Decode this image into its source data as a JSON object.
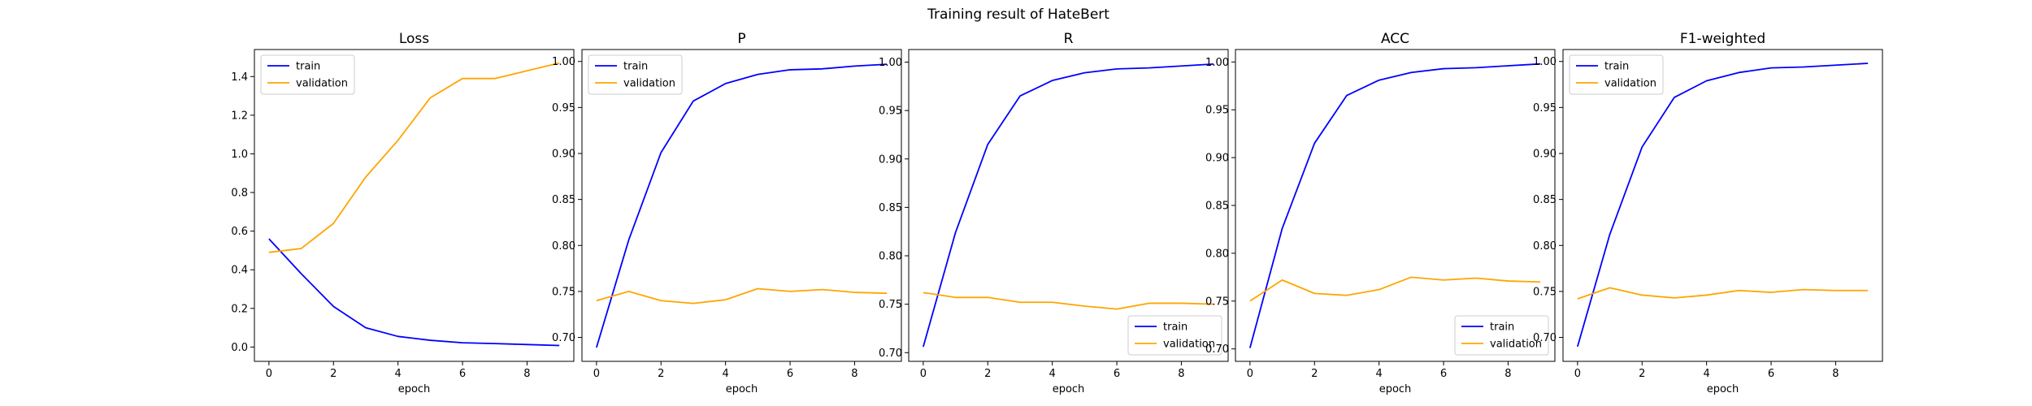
{
  "figure": {
    "title": "Training result of HateBert"
  },
  "chart_data": [
    {
      "type": "line",
      "title": "Loss",
      "xlabel": "epoch",
      "ylabel": "",
      "x": [
        0,
        1,
        2,
        3,
        4,
        5,
        6,
        7,
        8,
        9
      ],
      "xlim": [
        -0.45,
        9.45
      ],
      "ylim": [
        -0.074,
        1.54
      ],
      "xticks": [
        0,
        2,
        4,
        6,
        8
      ],
      "yticks": [
        0.0,
        0.2,
        0.4,
        0.6,
        0.8,
        1.0,
        1.2,
        1.4
      ],
      "ytick_labels": [
        "0.0",
        "0.2",
        "0.4",
        "0.6",
        "0.8",
        "1.0",
        "1.2",
        "1.4"
      ],
      "legend_position": "upper-left",
      "grid": false,
      "series": [
        {
          "name": "train",
          "color": "#0000ff",
          "values": [
            0.56,
            0.38,
            0.21,
            0.1,
            0.055,
            0.035,
            0.022,
            0.018,
            0.013,
            0.008
          ]
        },
        {
          "name": "validation",
          "color": "#ffa500",
          "values": [
            0.49,
            0.51,
            0.64,
            0.88,
            1.07,
            1.29,
            1.39,
            1.39,
            1.43,
            1.47
          ]
        }
      ]
    },
    {
      "type": "line",
      "title": "P",
      "xlabel": "epoch",
      "ylabel": "",
      "x": [
        0,
        1,
        2,
        3,
        4,
        5,
        6,
        7,
        8,
        9
      ],
      "xlim": [
        -0.45,
        9.45
      ],
      "ylim": [
        0.674,
        1.013
      ],
      "xticks": [
        0,
        2,
        4,
        6,
        8
      ],
      "yticks": [
        0.7,
        0.75,
        0.8,
        0.85,
        0.9,
        0.95,
        1.0
      ],
      "ytick_labels": [
        "0.70",
        "0.75",
        "0.80",
        "0.85",
        "0.90",
        "0.95",
        "1.00"
      ],
      "legend_position": "upper-left",
      "grid": false,
      "series": [
        {
          "name": "train",
          "color": "#0000ff",
          "values": [
            0.689,
            0.806,
            0.901,
            0.957,
            0.976,
            0.986,
            0.991,
            0.992,
            0.995,
            0.997
          ]
        },
        {
          "name": "validation",
          "color": "#ffa500",
          "values": [
            0.74,
            0.75,
            0.74,
            0.737,
            0.741,
            0.753,
            0.75,
            0.752,
            0.749,
            0.748
          ]
        }
      ]
    },
    {
      "type": "line",
      "title": "R",
      "xlabel": "epoch",
      "ylabel": "",
      "x": [
        0,
        1,
        2,
        3,
        4,
        5,
        6,
        7,
        8,
        9
      ],
      "xlim": [
        -0.45,
        9.45
      ],
      "ylim": [
        0.691,
        1.013
      ],
      "xticks": [
        0,
        2,
        4,
        6,
        8
      ],
      "yticks": [
        0.7,
        0.75,
        0.8,
        0.85,
        0.9,
        0.95,
        1.0
      ],
      "ytick_labels": [
        "0.70",
        "0.75",
        "0.80",
        "0.85",
        "0.90",
        "0.95",
        "1.00"
      ],
      "legend_position": "lower-right",
      "grid": false,
      "series": [
        {
          "name": "train",
          "color": "#0000ff",
          "values": [
            0.706,
            0.824,
            0.915,
            0.965,
            0.981,
            0.989,
            0.993,
            0.994,
            0.996,
            0.998
          ]
        },
        {
          "name": "validation",
          "color": "#ffa500",
          "values": [
            0.762,
            0.757,
            0.757,
            0.752,
            0.752,
            0.748,
            0.745,
            0.751,
            0.751,
            0.75
          ]
        }
      ]
    },
    {
      "type": "line",
      "title": "ACC",
      "xlabel": "epoch",
      "ylabel": "",
      "x": [
        0,
        1,
        2,
        3,
        4,
        5,
        6,
        7,
        8,
        9
      ],
      "xlim": [
        -0.45,
        9.45
      ],
      "ylim": [
        0.687,
        1.013
      ],
      "xticks": [
        0,
        2,
        4,
        6,
        8
      ],
      "yticks": [
        0.7,
        0.75,
        0.8,
        0.85,
        0.9,
        0.95,
        1.0
      ],
      "ytick_labels": [
        "0.70",
        "0.75",
        "0.80",
        "0.85",
        "0.90",
        "0.95",
        "1.00"
      ],
      "legend_position": "lower-right",
      "grid": false,
      "series": [
        {
          "name": "train",
          "color": "#0000ff",
          "values": [
            0.701,
            0.826,
            0.915,
            0.965,
            0.981,
            0.989,
            0.993,
            0.994,
            0.996,
            0.998
          ]
        },
        {
          "name": "validation",
          "color": "#ffa500",
          "values": [
            0.75,
            0.772,
            0.758,
            0.756,
            0.762,
            0.775,
            0.772,
            0.774,
            0.771,
            0.77
          ]
        }
      ]
    },
    {
      "type": "line",
      "title": "F1-weighted",
      "xlabel": "epoch",
      "ylabel": "",
      "x": [
        0,
        1,
        2,
        3,
        4,
        5,
        6,
        7,
        8,
        9
      ],
      "xlim": [
        -0.45,
        9.45
      ],
      "ylim": [
        0.674,
        1.013
      ],
      "xticks": [
        0,
        2,
        4,
        6,
        8
      ],
      "yticks": [
        0.7,
        0.75,
        0.8,
        0.85,
        0.9,
        0.95,
        1.0
      ],
      "ytick_labels": [
        "0.70",
        "0.75",
        "0.80",
        "0.85",
        "0.90",
        "0.95",
        "1.00"
      ],
      "legend_position": "upper-left",
      "grid": false,
      "series": [
        {
          "name": "train",
          "color": "#0000ff",
          "values": [
            0.69,
            0.812,
            0.907,
            0.961,
            0.979,
            0.988,
            0.993,
            0.994,
            0.996,
            0.998
          ]
        },
        {
          "name": "validation",
          "color": "#ffa500",
          "values": [
            0.742,
            0.754,
            0.746,
            0.743,
            0.746,
            0.751,
            0.749,
            0.752,
            0.751,
            0.751
          ]
        }
      ]
    }
  ]
}
